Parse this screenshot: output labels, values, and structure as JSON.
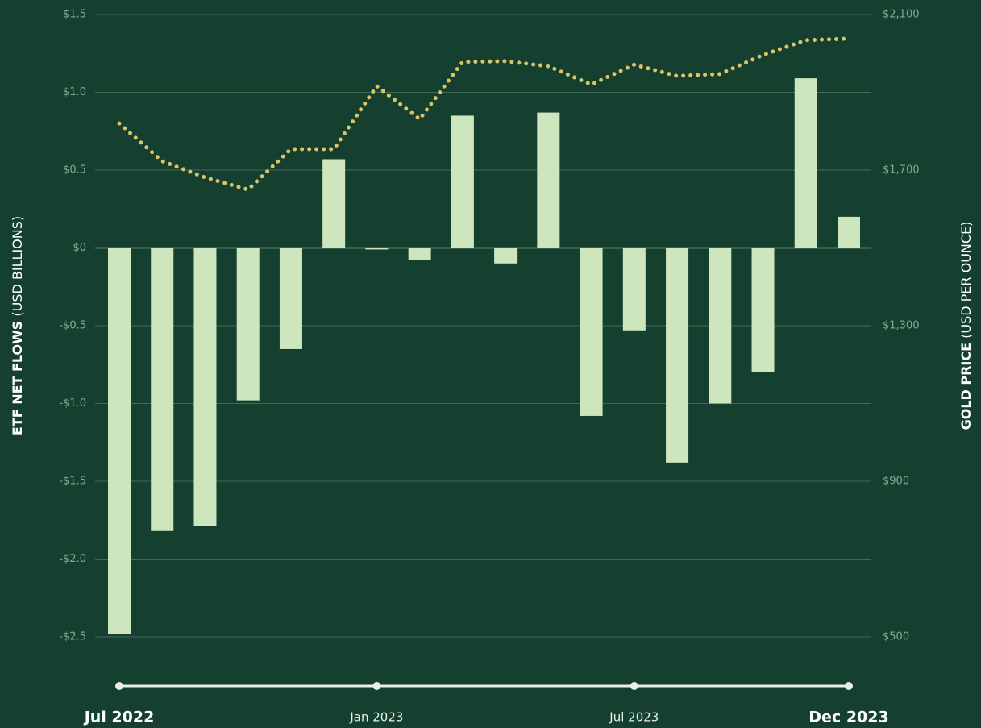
{
  "chart_data": {
    "type": "bar_line",
    "y_label_bold": "ETF NET FLOWS",
    "y_label_unit": "(USD BILLIONS)",
    "y2_label_bold": "GOLD PRICE",
    "y2_label_unit": "(USD PER OUNCE)",
    "categories": [
      "Jul 2022",
      null,
      null,
      null,
      null,
      null,
      "Jan 2023",
      null,
      null,
      null,
      null,
      null,
      "Jul 2023",
      null,
      null,
      null,
      null,
      "Dec 2023"
    ],
    "bold_categories": [
      0,
      17
    ],
    "ylim": [
      -2.5,
      1.5
    ],
    "yticks": [
      {
        "value": 1.5,
        "label": "$1.5"
      },
      {
        "value": 1.0,
        "label": "$1.0"
      },
      {
        "value": 0.5,
        "label": "$0.5"
      },
      {
        "value": 0,
        "label": "$0"
      },
      {
        "value": -0.5,
        "label": "-$0.5"
      },
      {
        "value": -1.0,
        "label": "-$1.0"
      },
      {
        "value": -1.5,
        "label": "-$1.5"
      },
      {
        "value": -2.0,
        "label": "-$2.0"
      },
      {
        "value": -2.5,
        "label": "-$2.5"
      }
    ],
    "y2lim": [
      500,
      2100
    ],
    "y2ticks": [
      {
        "value": 2100,
        "label": "$2,100"
      },
      {
        "value": 1700,
        "label": "$1,700"
      },
      {
        "value": 1300,
        "label": "$1,300"
      },
      {
        "value": 900,
        "label": "$900"
      },
      {
        "value": 500,
        "label": "$500"
      }
    ],
    "grid": true,
    "series": [
      {
        "type": "bar",
        "color": "#cde6bd",
        "values": [
          -2.48,
          -1.82,
          -1.79,
          -0.98,
          -0.65,
          0.57,
          -0.01,
          -0.08,
          0.85,
          -0.1,
          0.87,
          -1.08,
          -0.53,
          -1.38,
          -1.0,
          -0.8,
          1.09,
          0.2
        ]
      },
      {
        "type": "line",
        "axis": "y2",
        "color": "#d9c46a",
        "values": [
          1820,
          1723,
          1681,
          1650,
          1754,
          1754,
          1916,
          1831,
          1978,
          1980,
          1967,
          1920,
          1971,
          1942,
          1947,
          1996,
          2034,
          2038
        ]
      }
    ]
  }
}
